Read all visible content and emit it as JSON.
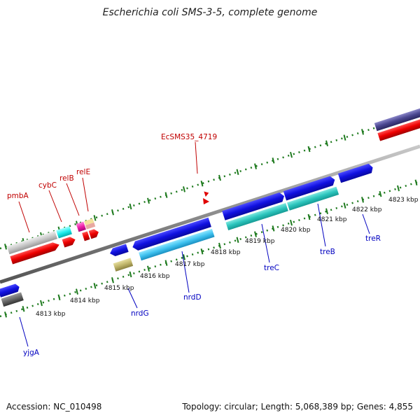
{
  "title": "Escherichia coli SMS-3-5, complete genome",
  "footer": {
    "accession": "Accession: NC_010498",
    "summary": "Topology: circular; Length: 5,068,389 bp; Genes: 4,855"
  },
  "colors": {
    "top_labels": "#c00000",
    "bottom_labels": "#0000c0",
    "ticks": "#1e7a1e",
    "backbone": "#8c8c8c"
  },
  "tick_labels": [
    "4813 kbp",
    "4814 kbp",
    "4815 kbp",
    "4816 kbp",
    "4817 kbp",
    "4818 kbp",
    "4819 kbp",
    "4820 kbp",
    "4821 kbp",
    "4822 kbp",
    "4823 kbp"
  ],
  "gene_labels_top": [
    "pmbA",
    "cybC",
    "relB",
    "relE",
    "EcSMS35_4719"
  ],
  "gene_labels_bottom": [
    "yjgA",
    "nrdG",
    "nrdD",
    "treC",
    "treB",
    "treR"
  ]
}
